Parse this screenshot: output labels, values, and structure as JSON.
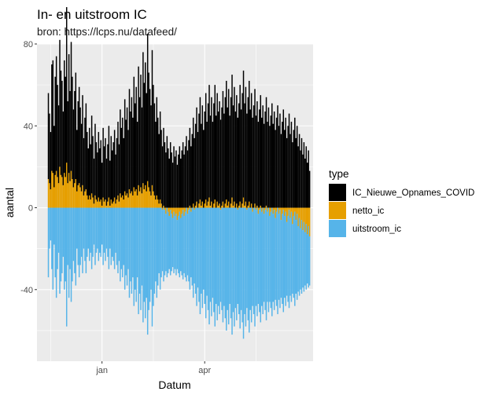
{
  "chart_data": {
    "type": "bar",
    "title": "In- en uitstroom IC",
    "subtitle": "bron: https://lcps.nu/datafeed/",
    "xlabel": "Datum",
    "ylabel": "aantal",
    "ylim": [
      -75,
      80
    ],
    "y_ticks": [
      80,
      40,
      0,
      -40
    ],
    "y_tick_labels": [
      "80",
      "40",
      "0",
      "-40"
    ],
    "x_tick_labels": [
      "jan",
      "apr"
    ],
    "x_ticks_day_index": [
      48,
      138
    ],
    "start_day_index": 1,
    "days": 224,
    "grid": true,
    "legend": {
      "title": "type",
      "position": "right",
      "entries": [
        {
          "name": "IC_Nieuwe_Opnames_COVID",
          "color": "#000000"
        },
        {
          "name": "netto_ic",
          "color": "#E69F00"
        },
        {
          "name": "uitstroom_ic",
          "color": "#56B4E9"
        }
      ]
    },
    "series": [
      {
        "name": "IC_Nieuwe_Opnames_COVID",
        "color": "#000000",
        "values": [
          42,
          34,
          28,
          52,
          55,
          30,
          48,
          56,
          45,
          38,
          62,
          51,
          47,
          36,
          55,
          49,
          76,
          40,
          58,
          44,
          63,
          50,
          38,
          45,
          52,
          30,
          41,
          47,
          39,
          33,
          44,
          28,
          36,
          42,
          31,
          25,
          33,
          27,
          38,
          30,
          22,
          35,
          28,
          24,
          32,
          26,
          29,
          21,
          34,
          27,
          30,
          23,
          28,
          35,
          22,
          31,
          26,
          29,
          33,
          24,
          30,
          36,
          28,
          41,
          34,
          38,
          30,
          45,
          37,
          42,
          33,
          49,
          40,
          46,
          38,
          54,
          43,
          50,
          36,
          58,
          46,
          55,
          42,
          64,
          52,
          60,
          48,
          72,
          56,
          50,
          44,
          66,
          52,
          45,
          38,
          48,
          40,
          34,
          43,
          36,
          30,
          38,
          32,
          27,
          35,
          29,
          24,
          32,
          27,
          22,
          30,
          25,
          28,
          21,
          26,
          30,
          24,
          28,
          32,
          26,
          30,
          35,
          28,
          33,
          38,
          30,
          36,
          42,
          34,
          40,
          46,
          37,
          44,
          50,
          40,
          47,
          38,
          45,
          52,
          41,
          48,
          55,
          44,
          51,
          42,
          49,
          56,
          45,
          53,
          46,
          50,
          43,
          48,
          54,
          46,
          52,
          58,
          48,
          55,
          45,
          52,
          60,
          49,
          56,
          47,
          53,
          44,
          50,
          57,
          48,
          54,
          62,
          50,
          56,
          46,
          53,
          59,
          48,
          54,
          44,
          50,
          56,
          45,
          51,
          42,
          48,
          54,
          44,
          50,
          41,
          47,
          53,
          42,
          49,
          40,
          45,
          51,
          41,
          47,
          38,
          44,
          50,
          40,
          46,
          36,
          42,
          48,
          38,
          44,
          34,
          40,
          46,
          36,
          42,
          32,
          38,
          44,
          34,
          40,
          30,
          36,
          28,
          34,
          26,
          32,
          24,
          30,
          22,
          28,
          18
        ]
      },
      {
        "name": "netto_ic",
        "color": "#E69F00",
        "values": [
          14,
          12,
          9,
          18,
          17,
          10,
          16,
          18,
          15,
          12,
          20,
          16,
          15,
          11,
          17,
          15,
          22,
          12,
          17,
          13,
          18,
          14,
          10,
          12,
          14,
          8,
          11,
          12,
          10,
          8,
          11,
          6,
          8,
          9,
          6,
          4,
          6,
          4,
          7,
          5,
          2,
          6,
          4,
          3,
          5,
          3,
          4,
          1,
          5,
          3,
          4,
          1,
          3,
          5,
          1,
          4,
          2,
          3,
          5,
          2,
          4,
          6,
          3,
          7,
          5,
          6,
          4,
          8,
          6,
          7,
          5,
          9,
          7,
          8,
          6,
          10,
          8,
          9,
          6,
          11,
          8,
          10,
          7,
          12,
          9,
          11,
          8,
          13,
          10,
          8,
          6,
          11,
          8,
          6,
          4,
          6,
          4,
          2,
          4,
          2,
          -1,
          1,
          -1,
          -3,
          0,
          -2,
          -4,
          -1,
          -3,
          -5,
          -2,
          -4,
          -3,
          -6,
          -4,
          -2,
          -5,
          -3,
          -1,
          -4,
          -2,
          0,
          -3,
          -1,
          1,
          -2,
          0,
          2,
          -1,
          1,
          3,
          0,
          2,
          4,
          1,
          3,
          0,
          2,
          4,
          1,
          3,
          5,
          1,
          3,
          0,
          2,
          4,
          0,
          3,
          1,
          2,
          -1,
          1,
          3,
          0,
          2,
          4,
          1,
          3,
          0,
          2,
          5,
          1,
          3,
          0,
          2,
          -1,
          1,
          3,
          0,
          2,
          5,
          1,
          3,
          -1,
          1,
          3,
          0,
          2,
          -2,
          0,
          2,
          -1,
          1,
          -3,
          -1,
          1,
          -2,
          0,
          -3,
          -1,
          1,
          -2,
          0,
          -4,
          -2,
          0,
          -3,
          -1,
          -5,
          -2,
          0,
          -3,
          -1,
          -6,
          -3,
          -1,
          -4,
          -2,
          -7,
          -4,
          -1,
          -5,
          -2,
          -8,
          -4,
          -2,
          -6,
          -3,
          -9,
          -5,
          -10,
          -6,
          -11,
          -7,
          -12,
          -8,
          -13,
          -9,
          -14,
          -10,
          -20
        ]
      },
      {
        "name": "uitstroom_ic",
        "color": "#56B4E9",
        "values": [
          -34,
          -20,
          -16,
          -30,
          -40,
          -18,
          -34,
          -44,
          -30,
          -22,
          -42,
          -36,
          -32,
          -24,
          -40,
          -36,
          -58,
          -28,
          -44,
          -30,
          -46,
          -36,
          -26,
          -32,
          -38,
          -20,
          -28,
          -34,
          -28,
          -24,
          -32,
          -20,
          -26,
          -32,
          -24,
          -20,
          -26,
          -22,
          -30,
          -24,
          -18,
          -28,
          -22,
          -20,
          -26,
          -22,
          -24,
          -18,
          -28,
          -22,
          -26,
          -20,
          -24,
          -30,
          -20,
          -28,
          -24,
          -26,
          -30,
          -22,
          -28,
          -32,
          -26,
          -36,
          -30,
          -34,
          -28,
          -40,
          -33,
          -38,
          -30,
          -44,
          -36,
          -42,
          -34,
          -48,
          -40,
          -46,
          -34,
          -52,
          -42,
          -50,
          -38,
          -56,
          -46,
          -54,
          -44,
          -62,
          -50,
          -46,
          -40,
          -58,
          -48,
          -42,
          -36,
          -44,
          -38,
          -32,
          -40,
          -34,
          -30,
          -36,
          -32,
          -28,
          -34,
          -30,
          -26,
          -32,
          -28,
          -24,
          -30,
          -26,
          -30,
          -24,
          -28,
          -32,
          -26,
          -30,
          -34,
          -28,
          -32,
          -36,
          -30,
          -35,
          -40,
          -32,
          -38,
          -44,
          -36,
          -42,
          -48,
          -39,
          -46,
          -52,
          -42,
          -49,
          -40,
          -47,
          -54,
          -43,
          -50,
          -57,
          -46,
          -53,
          -44,
          -51,
          -58,
          -47,
          -55,
          -48,
          -52,
          -45,
          -50,
          -56,
          -48,
          -54,
          -60,
          -50,
          -57,
          -47,
          -54,
          -62,
          -51,
          -58,
          -49,
          -55,
          -46,
          -52,
          -59,
          -50,
          -56,
          -64,
          -52,
          -58,
          -48,
          -55,
          -61,
          -50,
          -56,
          -46,
          -52,
          -58,
          -47,
          -53,
          -44,
          -50,
          -56,
          -46,
          -52,
          -43,
          -49,
          -55,
          -44,
          -51,
          -42,
          -47,
          -53,
          -43,
          -49,
          -40,
          -46,
          -52,
          -42,
          -48,
          -38,
          -44,
          -50,
          -40,
          -46,
          -36,
          -42,
          -48,
          -38,
          -44,
          -34,
          -40,
          -46,
          -36,
          -42,
          -32,
          -38,
          -30,
          -36,
          -28,
          -34,
          -26,
          -32,
          -24,
          -30,
          -24
        ]
      }
    ]
  }
}
